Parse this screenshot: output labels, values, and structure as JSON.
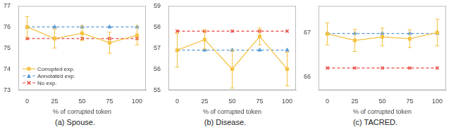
{
  "chart_data": [
    {
      "type": "line",
      "title": "(a) Spouse.",
      "x_label": "% of corrupted token",
      "x": [
        0,
        25,
        50,
        75,
        100
      ],
      "xlim": [
        -8,
        108
      ],
      "xticks": [
        0,
        25,
        50,
        75,
        100
      ],
      "ylim": [
        73,
        77
      ],
      "yticks": [
        73,
        74,
        75,
        76,
        77
      ],
      "grid": false,
      "legend": "lower left",
      "series": [
        {
          "name": "Corrupted exp.",
          "color": "#f5c242",
          "marker": "square",
          "line_style": "solid",
          "values": [
            76.0,
            75.45,
            75.7,
            75.25,
            75.6
          ],
          "errors": [
            0.5,
            0.45,
            0.35,
            0.5,
            0.45
          ]
        },
        {
          "name": "Annotated exp.",
          "color": "#5b9bd5",
          "marker": "triangle",
          "line_style": "dashed",
          "values": [
            76.0,
            76.0,
            76.0,
            76.0,
            76.0
          ]
        },
        {
          "name": "No exp.",
          "color": "#e8453c",
          "marker": "x",
          "line_style": "dashed",
          "values": [
            75.45,
            75.45,
            75.45,
            75.45,
            75.45
          ]
        }
      ]
    },
    {
      "type": "line",
      "title": "(b) Disease.",
      "x_label": "% of corrupted token",
      "x": [
        0,
        25,
        50,
        75,
        100
      ],
      "xlim": [
        -8,
        108
      ],
      "xticks": [
        0,
        25,
        50,
        75,
        100
      ],
      "ylim": [
        55,
        59
      ],
      "yticks": [
        55,
        56,
        57,
        58,
        59
      ],
      "grid": false,
      "series": [
        {
          "name": "Corrupted exp.",
          "color": "#f5c242",
          "marker": "square",
          "line_style": "solid",
          "values": [
            56.9,
            57.4,
            56.0,
            57.55,
            56.0
          ],
          "errors": [
            0.8,
            0.45,
            0.9,
            0.4,
            0.8
          ]
        },
        {
          "name": "Annotated exp.",
          "color": "#5b9bd5",
          "marker": "triangle",
          "line_style": "dashed",
          "values": [
            56.9,
            56.9,
            56.9,
            56.9,
            56.9
          ]
        },
        {
          "name": "No exp.",
          "color": "#e8453c",
          "marker": "x",
          "line_style": "dashed",
          "values": [
            57.8,
            57.8,
            57.8,
            57.8,
            57.8
          ]
        }
      ]
    },
    {
      "type": "line",
      "title": "(c) TACRED.",
      "x_label": "% of corrupted token",
      "x": [
        0,
        25,
        50,
        75,
        100
      ],
      "xlim": [
        -8,
        108
      ],
      "xticks": [
        0,
        25,
        50,
        75,
        100
      ],
      "ylim": [
        65.7,
        67.6
      ],
      "yticks": [
        66,
        67
      ],
      "grid": false,
      "series": [
        {
          "name": "Corrupted exp.",
          "color": "#f5c242",
          "marker": "square",
          "line_style": "solid",
          "values": [
            66.97,
            66.82,
            66.9,
            66.86,
            67.0
          ],
          "errors": [
            0.25,
            0.25,
            0.2,
            0.2,
            0.3
          ]
        },
        {
          "name": "Annotated exp.",
          "color": "#5b9bd5",
          "marker": "triangle",
          "line_style": "dashed",
          "values": [
            66.98,
            66.98,
            66.98,
            66.98,
            66.98
          ]
        },
        {
          "name": "No exp.",
          "color": "#e8453c",
          "marker": "x",
          "line_style": "dashed",
          "values": [
            66.2,
            66.2,
            66.2,
            66.2,
            66.2
          ]
        }
      ]
    }
  ]
}
